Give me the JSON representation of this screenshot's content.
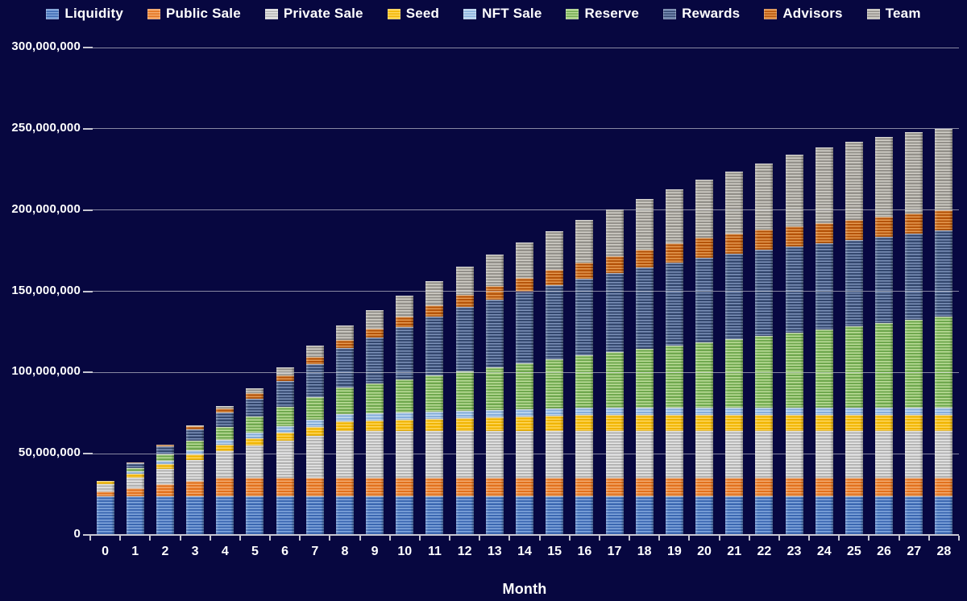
{
  "colors": {
    "background": "#070740",
    "gridline": "#d9d9de",
    "axis_line": "#c7c7d2",
    "text": "#ffffff"
  },
  "legend": {
    "position": "top"
  },
  "x_axis": {
    "title": "Month"
  },
  "y_axis": {
    "tick_labels": [
      "0",
      "50,000,000",
      "100,000,000",
      "150,000,000",
      "200,000,000",
      "250,000,000",
      "300,000,000"
    ]
  },
  "chart_data": {
    "type": "bar",
    "stacked": true,
    "title": "",
    "xlabel": "Month",
    "ylabel": "",
    "ylim": [
      0,
      300000000
    ],
    "grid": true,
    "legend_position": "top",
    "value_unit": 1000000,
    "categories": [
      "0",
      "1",
      "2",
      "3",
      "4",
      "5",
      "6",
      "7",
      "8",
      "9",
      "10",
      "11",
      "12",
      "13",
      "14",
      "15",
      "16",
      "17",
      "18",
      "19",
      "20",
      "21",
      "22",
      "23",
      "24",
      "25",
      "26",
      "27",
      "28"
    ],
    "series": [
      {
        "name": "Liquidity",
        "color": "#3b67b1",
        "stripe_color": "#85a9de",
        "values": [
          24,
          24,
          24,
          24,
          24,
          24,
          24,
          24,
          24,
          24,
          24,
          24,
          24,
          24,
          24,
          24,
          24,
          24,
          24,
          24,
          24,
          24,
          24,
          24,
          24,
          24,
          24,
          24,
          24
        ]
      },
      {
        "name": "Public Sale",
        "color": "#e2711d",
        "stripe_color": "#f4ab6f",
        "values": [
          3,
          5,
          7,
          9,
          11,
          11,
          11,
          11,
          11,
          11,
          11,
          11,
          11,
          11,
          11,
          11,
          11,
          11,
          11,
          11,
          11,
          11,
          11,
          11,
          11,
          11,
          11,
          11,
          11
        ]
      },
      {
        "name": "Private Sale",
        "color": "#b3b3b3",
        "stripe_color": "#e8e8e8",
        "values": [
          4,
          6,
          9.5,
          13,
          16.5,
          20,
          23,
          26,
          29,
          29,
          29,
          29,
          29,
          29,
          29,
          29,
          29,
          29,
          29,
          29,
          29,
          29,
          29,
          29,
          29,
          29,
          29,
          29,
          29
        ]
      },
      {
        "name": "Seed",
        "color": "#f0b400",
        "stripe_color": "#ffd75e",
        "values": [
          2,
          2.5,
          3,
          3.5,
          4,
          4.5,
          5,
          5.5,
          6,
          6.5,
          7,
          7.5,
          8,
          8.5,
          9,
          9.5,
          10,
          10,
          10,
          10,
          10,
          10,
          10,
          10,
          10,
          10,
          10,
          10,
          10
        ]
      },
      {
        "name": "NFT Sale",
        "color": "#86afdc",
        "stripe_color": "#c6dcf2",
        "values": [
          0,
          1.5,
          2,
          2.5,
          3,
          3.5,
          4,
          4.5,
          4.5,
          4.5,
          4.5,
          4.5,
          4.5,
          4.5,
          4.5,
          4.5,
          4.5,
          4.5,
          4.5,
          4.5,
          4.5,
          4.5,
          4.5,
          4.5,
          4.5,
          4.5,
          4.5,
          4.5,
          4.5
        ]
      },
      {
        "name": "Reserve",
        "color": "#6fa84e",
        "stripe_color": "#bcdd99",
        "values": [
          0,
          2,
          4,
          6,
          8,
          10,
          12,
          14,
          16,
          18,
          20,
          22,
          24,
          26,
          28,
          30,
          32,
          34,
          36,
          38,
          40,
          42,
          44,
          46,
          48,
          50,
          52,
          54,
          56
        ]
      },
      {
        "name": "Rewards",
        "color": "#33476e",
        "stripe_color": "#7d92ba",
        "values": [
          0,
          3,
          5,
          7,
          9,
          11,
          15.5,
          20,
          24.5,
          28.5,
          32.5,
          36.5,
          40,
          42,
          44,
          45.5,
          47,
          48.5,
          50,
          51,
          52,
          52.5,
          52.8,
          53,
          53,
          53,
          53,
          53,
          53
        ]
      },
      {
        "name": "Advisors",
        "color": "#b55309",
        "stripe_color": "#e59a52",
        "values": [
          0,
          0.6,
          1.2,
          1.9,
          2.5,
          3.1,
          3.7,
          4.4,
          5,
          5.6,
          6.2,
          6.9,
          7.5,
          8.1,
          8.7,
          9.4,
          10,
          10.6,
          11.2,
          11.9,
          12.5,
          12.5,
          12.5,
          12.5,
          12.5,
          12.5,
          12.5,
          12.5,
          12.5
        ]
      },
      {
        "name": "Team",
        "color": "#93908a",
        "stripe_color": "#d2cfc8",
        "values": [
          0,
          0,
          0,
          0.5,
          1.5,
          3,
          5,
          7,
          9,
          11,
          13,
          15,
          17,
          19.3,
          21.7,
          24,
          26.3,
          28.7,
          31,
          33.3,
          35.7,
          38,
          41,
          44,
          46.5,
          48,
          49,
          50,
          50
        ]
      }
    ]
  }
}
